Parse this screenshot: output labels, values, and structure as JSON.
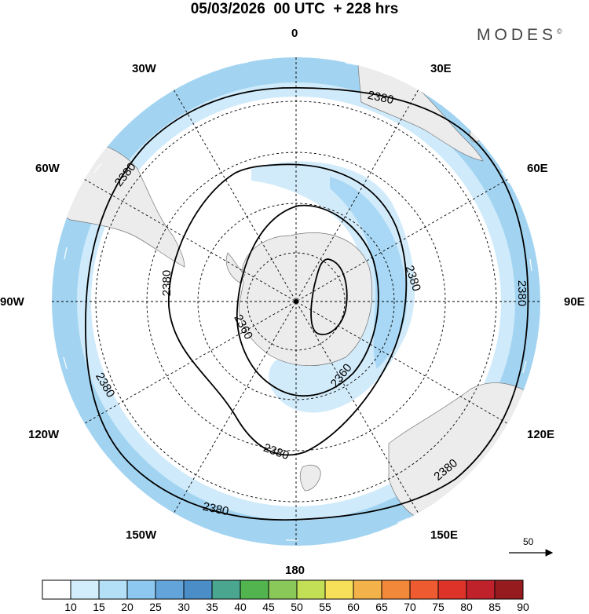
{
  "header": {
    "title": "05/03/2026  00 UTC  + 228 hrs",
    "brand": "MODES",
    "brand_mark": "©"
  },
  "map": {
    "projection": "polar stereographic, south pole",
    "longitude_labels": {
      "top": "0",
      "top_right": "30E",
      "upper_right": "60E",
      "right": "90E",
      "lower_right": "120E",
      "bottom_right": "150E",
      "bottom": "180",
      "bottom_left": "150W",
      "lower_left": "120W",
      "left": "90W",
      "upper_left": "60W",
      "top_left": "30W"
    },
    "contour_labels": [
      "2380",
      "2380",
      "2380",
      "2380",
      "2380",
      "2380",
      "2380",
      "2380",
      "2360",
      "2360",
      "2380"
    ],
    "wind_reference_vector": "50",
    "colors": {
      "ocean_outer_band": "#9fd3f3",
      "wind_light": "#cdeafb",
      "wind_mid": "#a8d8f5",
      "land": "#ececec",
      "contour": "#000000"
    }
  },
  "colorbar": {
    "ticks": [
      "10",
      "15",
      "20",
      "25",
      "30",
      "35",
      "40",
      "45",
      "50",
      "55",
      "60",
      "65",
      "70",
      "75",
      "80",
      "85",
      "90"
    ],
    "colors": [
      "#ffffff",
      "#d2eefc",
      "#b4e0f7",
      "#8cc8ef",
      "#63a4db",
      "#4a8dc7",
      "#4aa68e",
      "#52b44f",
      "#8ac85a",
      "#c3df55",
      "#f6e05a",
      "#f4b24a",
      "#f2883a",
      "#ee5b30",
      "#dd3328",
      "#c0222b",
      "#961b1f"
    ]
  }
}
